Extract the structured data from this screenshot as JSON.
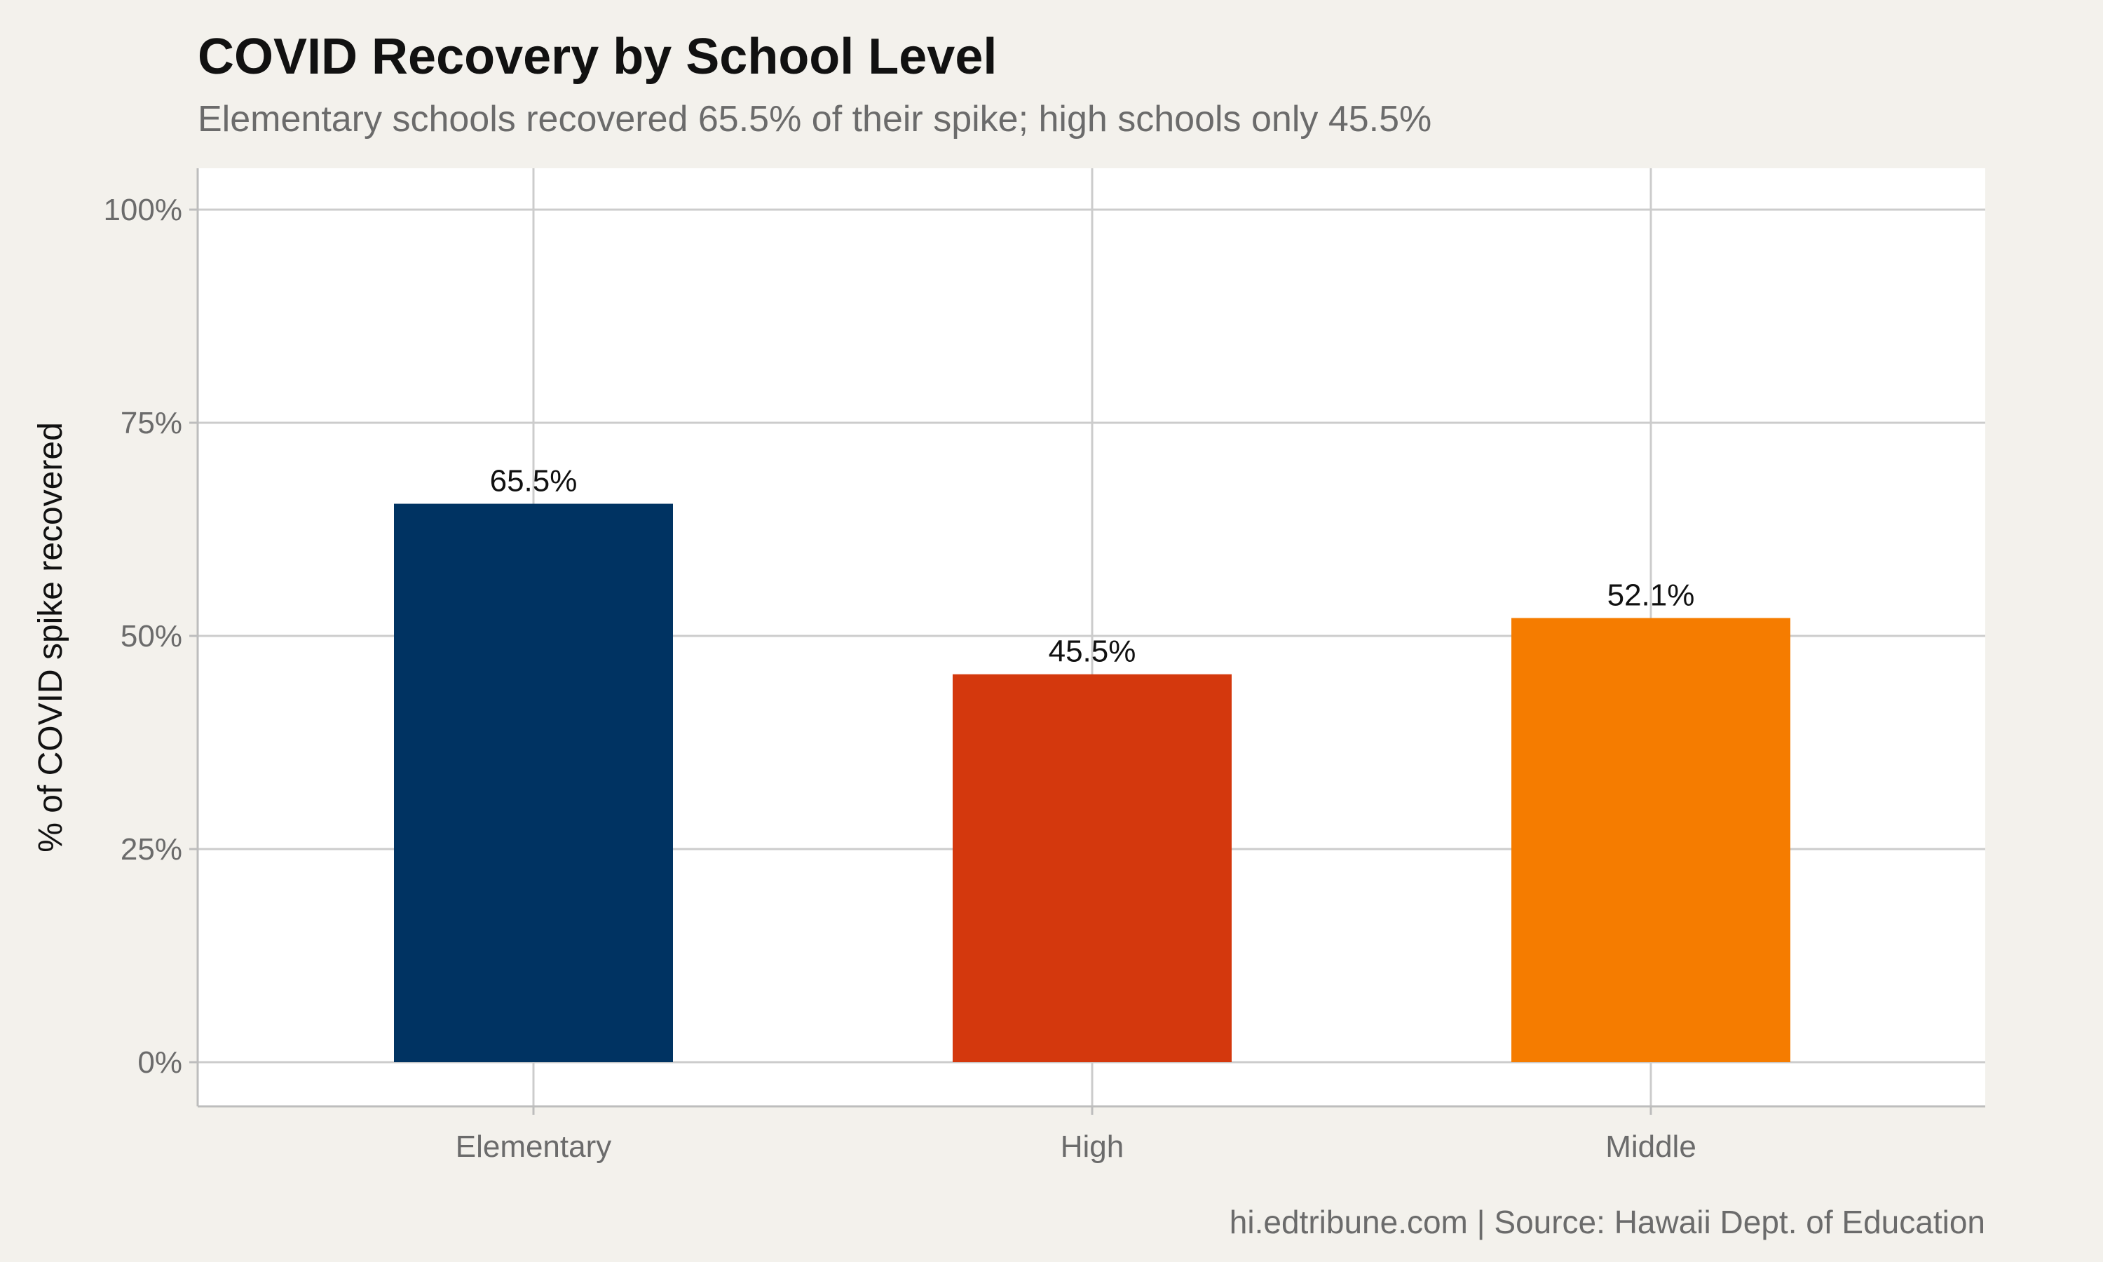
{
  "chart_data": {
    "type": "bar",
    "title": "COVID Recovery by School Level",
    "subtitle": "Elementary schools recovered 65.5% of their spike; high schools only 45.5%",
    "caption": "hi.edtribune.com | Source: Hawaii Dept. of Education",
    "xlabel": "",
    "ylabel": "% of COVID spike recovered",
    "categories": [
      "Elementary",
      "High",
      "Middle"
    ],
    "values": [
      65.5,
      45.5,
      52.1
    ],
    "data_labels": [
      "65.5%",
      "45.5%",
      "52.1%"
    ],
    "colors": [
      "#003362",
      "#d4380d",
      "#f57c00"
    ],
    "ylim": [
      0,
      100
    ],
    "yticks": [
      0,
      25,
      50,
      75,
      100
    ],
    "ytick_labels": [
      "0%",
      "25%",
      "50%",
      "75%",
      "100%"
    ],
    "grid": true,
    "legend": "none",
    "background": "#f3f1ec",
    "panel_background": "#ffffff",
    "grid_color": "#cccccc"
  }
}
